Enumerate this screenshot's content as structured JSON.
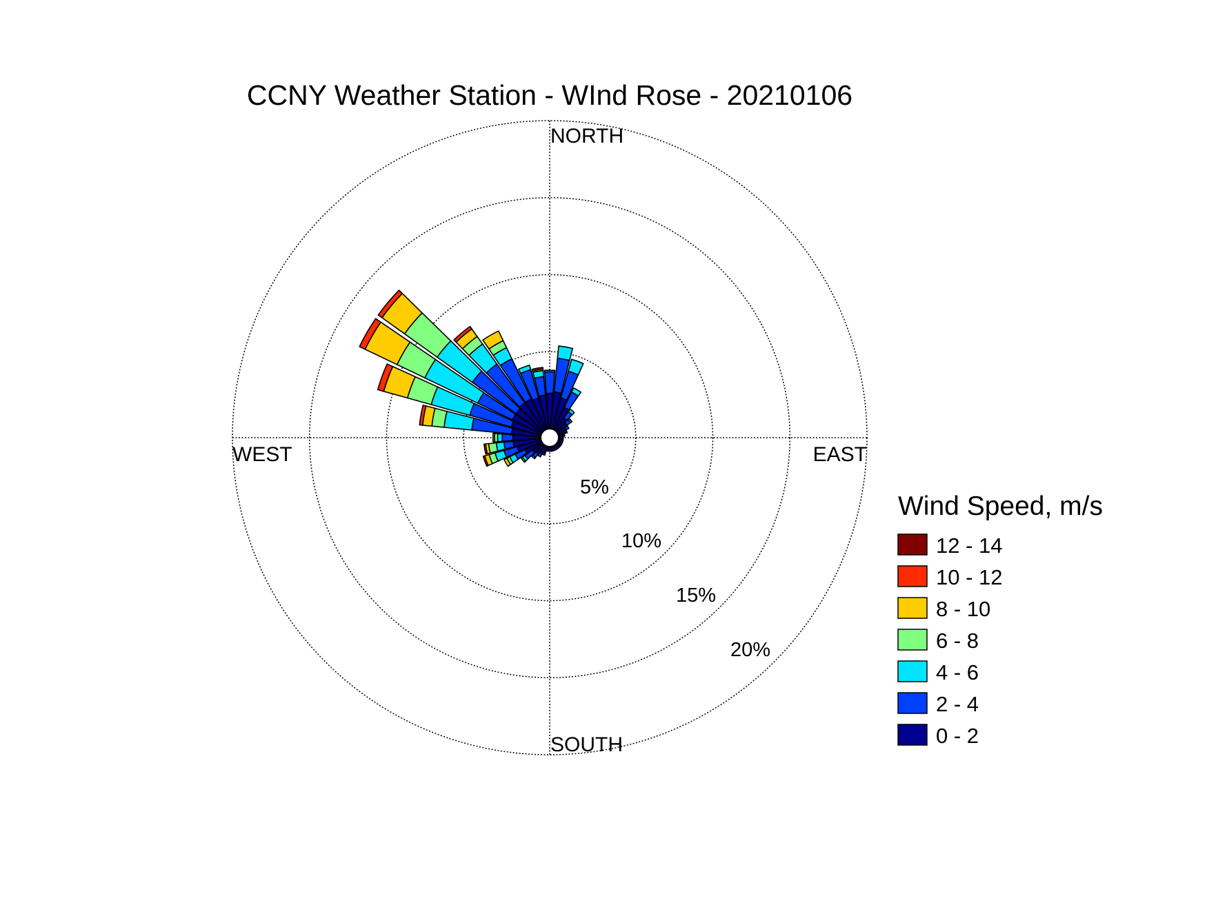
{
  "chart_data": {
    "type": "wind-rose",
    "title": "CCNY Weather Station - WInd Rose - 20210106",
    "directions": {
      "north": "NORTH",
      "south": "SOUTH",
      "east": "EAST",
      "west": "WEST"
    },
    "radial_axis": {
      "unit": "%",
      "max": 20,
      "ticks": [
        {
          "value": 5,
          "label": "5%"
        },
        {
          "value": 10,
          "label": "10%"
        },
        {
          "value": 15,
          "label": "15%"
        },
        {
          "value": 20,
          "label": "20%"
        }
      ],
      "grid": true
    },
    "legend": {
      "title": "Wind Speed, m/s",
      "placement": "right",
      "bins": [
        {
          "label": "12 - 14",
          "color": "#800000"
        },
        {
          "label": "10 - 12",
          "color": "#ff2a00"
        },
        {
          "label": "8 - 10",
          "color": "#ffcc00"
        },
        {
          "label": "6 - 8",
          "color": "#80ff80"
        },
        {
          "label": "4 - 6",
          "color": "#00e5ff"
        },
        {
          "label": "2 - 4",
          "color": "#0040ff"
        },
        {
          "label": "0 - 2",
          "color": "#00008f"
        }
      ]
    },
    "sector_width_deg": 10,
    "sectors": [
      {
        "direction_deg": 0,
        "values": [
          2.3,
          1.4,
          0.1,
          0,
          0,
          0,
          0
        ]
      },
      {
        "direction_deg": 10,
        "values": [
          2.4,
          2.2,
          0.8,
          0,
          0,
          0,
          0
        ]
      },
      {
        "direction_deg": 20,
        "values": [
          2.1,
          1.8,
          0.8,
          0,
          0,
          0,
          0
        ]
      },
      {
        "direction_deg": 30,
        "values": [
          1.6,
          1.1,
          0.3,
          0,
          0,
          0,
          0
        ]
      },
      {
        "direction_deg": 40,
        "values": [
          1.0,
          0.5,
          0.2,
          0,
          0,
          0,
          0
        ]
      },
      {
        "direction_deg": 50,
        "values": [
          0.8,
          0.3,
          0.1,
          0,
          0,
          0,
          0
        ]
      },
      {
        "direction_deg": 60,
        "values": [
          0.6,
          0.2,
          0,
          0,
          0,
          0,
          0
        ]
      },
      {
        "direction_deg": 70,
        "values": [
          0.5,
          0.1,
          0,
          0,
          0,
          0,
          0
        ]
      },
      {
        "direction_deg": 80,
        "values": [
          0.4,
          0,
          0,
          0,
          0,
          0,
          0
        ]
      },
      {
        "direction_deg": 90,
        "values": [
          0.3,
          0,
          0,
          0,
          0,
          0,
          0
        ]
      },
      {
        "direction_deg": 100,
        "values": [
          0.3,
          0,
          0,
          0,
          0,
          0,
          0
        ]
      },
      {
        "direction_deg": 110,
        "values": [
          0.3,
          0,
          0,
          0,
          0,
          0,
          0
        ]
      },
      {
        "direction_deg": 120,
        "values": [
          0.3,
          0,
          0,
          0,
          0,
          0,
          0
        ]
      },
      {
        "direction_deg": 130,
        "values": [
          0.3,
          0,
          0,
          0,
          0,
          0,
          0
        ]
      },
      {
        "direction_deg": 140,
        "values": [
          0.3,
          0,
          0,
          0,
          0,
          0,
          0
        ]
      },
      {
        "direction_deg": 150,
        "values": [
          0.3,
          0,
          0,
          0,
          0,
          0,
          0
        ]
      },
      {
        "direction_deg": 160,
        "values": [
          0.3,
          0,
          0,
          0,
          0,
          0,
          0
        ]
      },
      {
        "direction_deg": 170,
        "values": [
          0.3,
          0,
          0,
          0,
          0,
          0,
          0
        ]
      },
      {
        "direction_deg": 180,
        "values": [
          0.3,
          0,
          0,
          0,
          0,
          0,
          0
        ]
      },
      {
        "direction_deg": 190,
        "values": [
          0.3,
          0,
          0,
          0,
          0,
          0,
          0
        ]
      },
      {
        "direction_deg": 200,
        "values": [
          0.5,
          0.1,
          0,
          0,
          0,
          0,
          0
        ]
      },
      {
        "direction_deg": 210,
        "values": [
          0.6,
          0.2,
          0,
          0,
          0,
          0,
          0
        ]
      },
      {
        "direction_deg": 220,
        "values": [
          0.7,
          0.3,
          0.1,
          0,
          0,
          0,
          0
        ]
      },
      {
        "direction_deg": 230,
        "values": [
          0.8,
          0.6,
          0.2,
          0.1,
          0,
          0,
          0
        ]
      },
      {
        "direction_deg": 240,
        "values": [
          1.2,
          0.7,
          0.4,
          0.2,
          0.2,
          0,
          0
        ]
      },
      {
        "direction_deg": 250,
        "values": [
          1.6,
          0.9,
          0.6,
          0.4,
          0.3,
          0.1,
          0
        ]
      },
      {
        "direction_deg": 260,
        "values": [
          1.8,
          0.6,
          0.5,
          0.5,
          0.2,
          0.1,
          0
        ]
      },
      {
        "direction_deg": 270,
        "values": [
          1.8,
          0.7,
          0.3,
          0.2,
          0.1,
          0,
          0
        ]
      },
      {
        "direction_deg": 280,
        "values": [
          1.9,
          2.6,
          1.8,
          0.8,
          0.6,
          0.2,
          0
        ]
      },
      {
        "direction_deg": 290,
        "values": [
          2.0,
          2.8,
          2.6,
          1.6,
          1.6,
          0.4,
          0
        ]
      },
      {
        "direction_deg": 300,
        "values": [
          2.1,
          2.5,
          3.8,
          2.0,
          2.3,
          0.4,
          0
        ]
      },
      {
        "direction_deg": 310,
        "values": [
          2.1,
          3.5,
          2.8,
          2.6,
          1.8,
          0.3,
          0
        ]
      },
      {
        "direction_deg": 320,
        "values": [
          2.2,
          3.1,
          1.6,
          0.6,
          0.6,
          0.2,
          0
        ]
      },
      {
        "direction_deg": 330,
        "values": [
          2.2,
          2.9,
          0.8,
          0.5,
          0.7,
          0,
          0
        ]
      },
      {
        "direction_deg": 340,
        "values": [
          2.1,
          1.9,
          0.3,
          0,
          0,
          0,
          0
        ]
      },
      {
        "direction_deg": 350,
        "values": [
          2.2,
          1.2,
          0.4,
          0,
          0.1,
          0.1,
          0
        ]
      }
    ]
  }
}
